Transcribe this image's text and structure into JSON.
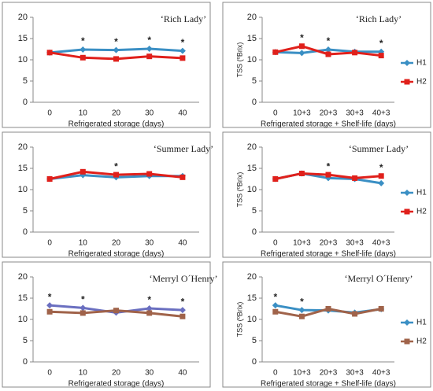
{
  "chart_data": [
    {
      "type": "line",
      "annotation": "‘Rich Lady’",
      "xlabel": "Refrigerated storage (days)",
      "categories": [
        "0",
        "10",
        "20",
        "30",
        "40"
      ],
      "ylim": [
        0,
        20
      ],
      "yticks": [
        0,
        5,
        10,
        15,
        20
      ],
      "significance": [
        null,
        "*",
        "*",
        "*",
        "*"
      ],
      "series": [
        {
          "color": "#3a8fc4",
          "values": [
            11.7,
            12.4,
            12.3,
            12.6,
            12.1
          ]
        },
        {
          "color": "#e0201b",
          "values": [
            11.7,
            10.5,
            10.2,
            10.8,
            10.4
          ]
        }
      ]
    },
    {
      "type": "line",
      "annotation": "‘Rich Lady’",
      "xlabel": "Refrigerated storage + Shelf-life (days)",
      "ylabel": "TSS (ºBrix)",
      "categories": [
        "0",
        "10+3",
        "20+3",
        "30+3",
        "40+3"
      ],
      "ylim": [
        0,
        20
      ],
      "yticks": [
        0,
        5,
        10,
        15,
        20
      ],
      "significance": [
        null,
        "*",
        "*",
        null,
        "*"
      ],
      "series": [
        {
          "name": "H1",
          "color": "#3a8fc4",
          "values": [
            11.8,
            11.6,
            12.4,
            11.9,
            11.9
          ]
        },
        {
          "name": "H2",
          "color": "#e0201b",
          "values": [
            11.8,
            13.2,
            11.3,
            11.7,
            11.0
          ]
        }
      ]
    },
    {
      "type": "line",
      "annotation": "‘Summer Lady’",
      "xlabel": "Refrigerated storage (days)",
      "categories": [
        "0",
        "10",
        "20",
        "30",
        "40"
      ],
      "ylim": [
        0,
        20
      ],
      "yticks": [
        0,
        5,
        10,
        15,
        20
      ],
      "significance": [
        null,
        null,
        "*",
        null,
        null
      ],
      "series": [
        {
          "color": "#3a8fc4",
          "values": [
            12.5,
            13.4,
            12.9,
            13.2,
            13.2
          ]
        },
        {
          "color": "#e0201b",
          "values": [
            12.5,
            14.2,
            13.5,
            13.7,
            12.9
          ]
        }
      ]
    },
    {
      "type": "line",
      "annotation": "‘Summer Lady’",
      "xlabel": "Refrigerated storage +  Shelf-life (days)",
      "ylabel": "TSS (ºBrix)",
      "categories": [
        "0",
        "10+3",
        "20+3",
        "30+3",
        "40+3"
      ],
      "ylim": [
        0,
        20
      ],
      "yticks": [
        0,
        5,
        10,
        15,
        20
      ],
      "significance": [
        null,
        null,
        "*",
        null,
        "*"
      ],
      "series": [
        {
          "name": "H1",
          "color": "#3a8fc4",
          "values": [
            12.5,
            13.8,
            12.7,
            12.5,
            11.5
          ]
        },
        {
          "name": "H2",
          "color": "#e0201b",
          "values": [
            12.5,
            13.8,
            13.5,
            12.7,
            13.2
          ]
        }
      ]
    },
    {
      "type": "line",
      "annotation": "‘Merryl O´Henry’",
      "xlabel": "Refrigerated storage (days)",
      "categories": [
        "0",
        "10",
        "20",
        "30",
        "40"
      ],
      "ylim": [
        0,
        20
      ],
      "yticks": [
        0,
        5,
        10,
        15,
        20
      ],
      "significance": [
        "*",
        "*",
        null,
        "*",
        "*"
      ],
      "series": [
        {
          "color": "#6a6fc0",
          "values": [
            13.3,
            12.7,
            11.6,
            12.6,
            12.2
          ]
        },
        {
          "color": "#a0634a",
          "values": [
            11.8,
            11.5,
            12.1,
            11.5,
            10.7
          ]
        }
      ]
    },
    {
      "type": "line",
      "annotation": "‘Merryl O´Henry’",
      "xlabel": "Refrigerated storage + Shelf-life (days)",
      "ylabel": "TSS (ºBrix)",
      "categories": [
        "0",
        "10+3",
        "20+3",
        "30+3",
        "40+3"
      ],
      "ylim": [
        0,
        20
      ],
      "yticks": [
        0,
        5,
        10,
        15,
        20
      ],
      "significance": [
        "*",
        "*",
        null,
        null,
        null
      ],
      "series": [
        {
          "name": "H1",
          "color": "#3a8fc4",
          "values": [
            13.3,
            12.2,
            12.1,
            11.6,
            12.4
          ]
        },
        {
          "name": "H2",
          "color": "#a0634a",
          "values": [
            11.8,
            10.7,
            12.5,
            11.3,
            12.5
          ]
        }
      ]
    }
  ]
}
